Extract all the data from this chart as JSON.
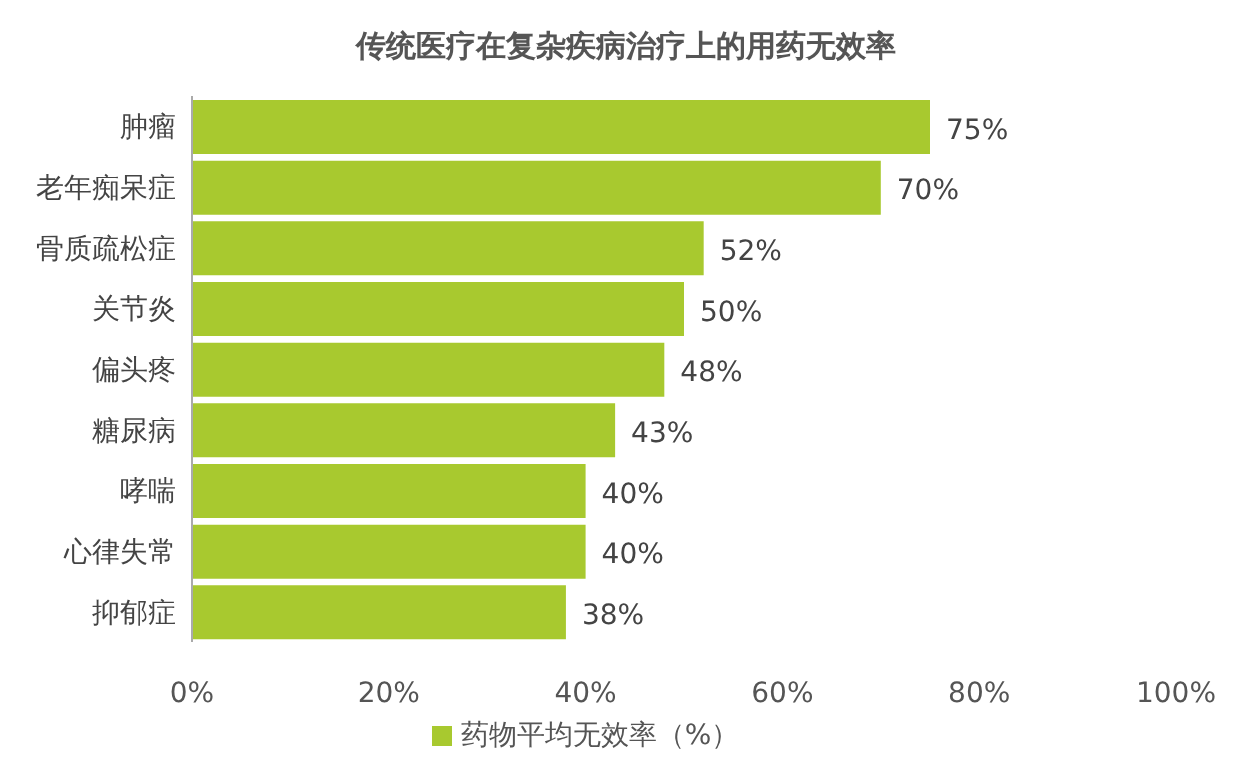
{
  "chart_data": {
    "type": "bar",
    "orientation": "horizontal",
    "title": "传统医疗在复杂疾病治疗上的用药无效率",
    "categories": [
      "肿瘤",
      "老年痴呆症",
      "骨质疏松症",
      "关节炎",
      "偏头疼",
      "糖尿病",
      "哮喘",
      "心律失常",
      "抑郁症"
    ],
    "series": [
      {
        "name": "药物平均无效率（%）",
        "color": "#a8c92f",
        "values": [
          75,
          70,
          52,
          50,
          48,
          43,
          40,
          40,
          38
        ],
        "value_labels": [
          "75%",
          "70%",
          "52%",
          "50%",
          "48%",
          "43%",
          "40%",
          "40%",
          "38%"
        ]
      }
    ],
    "xlim": [
      0,
      100
    ],
    "xticks": [
      {
        "value": 0,
        "label": "0%"
      },
      {
        "value": 20,
        "label": "20%"
      },
      {
        "value": 40,
        "label": "40%"
      },
      {
        "value": 60,
        "label": "60%"
      },
      {
        "value": 80,
        "label": "80%"
      },
      {
        "value": 100,
        "label": "100%"
      }
    ],
    "grid": false,
    "legend": "bottom"
  }
}
